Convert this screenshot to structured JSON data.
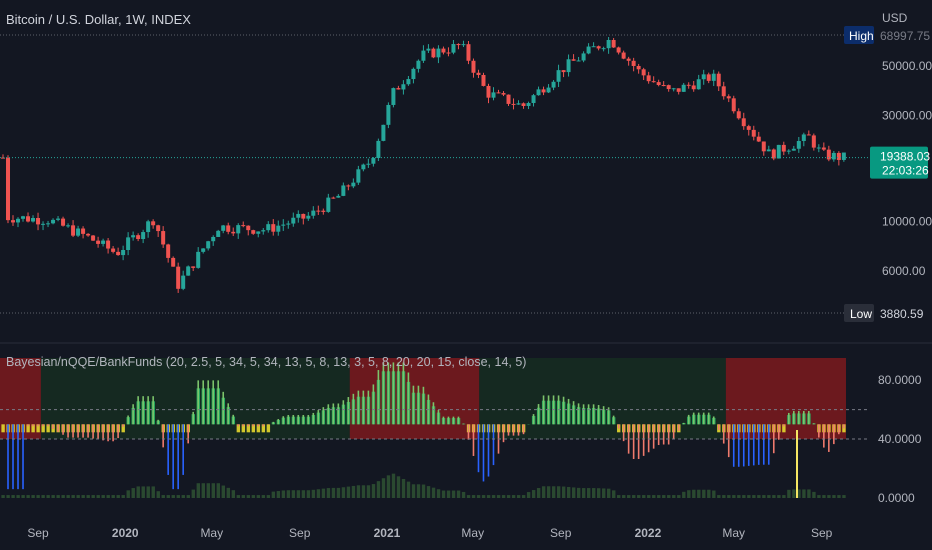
{
  "header": {
    "symbol_title": "Bitcoin / U.S. Dollar, 1W, INDEX"
  },
  "indicator": {
    "title": "Bayesian/nQQE/BankFunds (20, 2.5, 5, 34, 5, 34, 13, 5, 8, 13, 3, 5, 8, 20, 20, 15, close, 14, 5)"
  },
  "price_axis": {
    "currency": "USD",
    "ticks": [
      "50000.00",
      "30000.00",
      "10000.00",
      "6000.00"
    ],
    "high_label": "High",
    "high_value": "68997.75",
    "low_label": "Low",
    "low_value": "3880.59",
    "last_price": "19388.03",
    "countdown": "22:03:26"
  },
  "indicator_axis": {
    "ticks": [
      "80.0000",
      "40.0000",
      "0.0000"
    ]
  },
  "time_axis": {
    "ticks": [
      "Sep",
      "2020",
      "May",
      "Sep",
      "2021",
      "May",
      "Sep",
      "2022",
      "May",
      "Sep"
    ]
  },
  "colors": {
    "background": "#131722",
    "up": "#26a69a",
    "down": "#ef5350",
    "green_fill": "#2e7d32",
    "red_fill": "#b71c1c",
    "yellow": "#e6d82e",
    "bright_green": "#26c06a",
    "blue": "#2962ff",
    "last_price_bg": "#089981",
    "label_navy": "#0c2d6b"
  },
  "chart_data": {
    "type": "candlestick",
    "timeframe": "1W",
    "y_scale": "log",
    "ylim": [
      3880.59,
      68997.75
    ],
    "anchors": [
      {
        "date": "2019-07-15",
        "close": 10500
      },
      {
        "date": "2019-09-15",
        "close": 10200
      },
      {
        "date": "2019-11-10",
        "close": 8500
      },
      {
        "date": "2019-12-20",
        "close": 7200
      },
      {
        "date": "2020-02-10",
        "close": 10300
      },
      {
        "date": "2020-03-15",
        "close": 5200
      },
      {
        "date": "2020-05-10",
        "close": 9500
      },
      {
        "date": "2020-07-15",
        "close": 9200
      },
      {
        "date": "2020-09-15",
        "close": 10600
      },
      {
        "date": "2020-10-25",
        "close": 13000
      },
      {
        "date": "2020-12-10",
        "close": 19000
      },
      {
        "date": "2021-01-10",
        "close": 38000
      },
      {
        "date": "2021-02-20",
        "close": 56000
      },
      {
        "date": "2021-04-15",
        "close": 62000
      },
      {
        "date": "2021-05-20",
        "close": 38000
      },
      {
        "date": "2021-07-10",
        "close": 33000
      },
      {
        "date": "2021-09-01",
        "close": 48000
      },
      {
        "date": "2021-10-20",
        "close": 61000
      },
      {
        "date": "2021-11-10",
        "close": 66000
      },
      {
        "date": "2021-12-20",
        "close": 47000
      },
      {
        "date": "2022-02-01",
        "close": 38000
      },
      {
        "date": "2022-04-01",
        "close": 45000
      },
      {
        "date": "2022-05-10",
        "close": 30000
      },
      {
        "date": "2022-06-20",
        "close": 20000
      },
      {
        "date": "2022-08-15",
        "close": 24000
      },
      {
        "date": "2022-09-01",
        "close": 20000
      },
      {
        "date": "2022-10-01",
        "close": 19388
      }
    ],
    "indicator": {
      "levels": [
        60,
        40
      ],
      "ylim": [
        0,
        95
      ],
      "segments": [
        {
          "start": "2019-07-01",
          "end": "2019-09-05",
          "state": "bearish"
        },
        {
          "start": "2019-09-05",
          "end": "2020-11-10",
          "state": "bullish"
        },
        {
          "start": "2020-11-10",
          "end": "2021-05-10",
          "state": "bearish"
        },
        {
          "start": "2021-05-10",
          "end": "2022-04-20",
          "state": "bullish"
        },
        {
          "start": "2022-04-20",
          "end": "2022-10-05",
          "state": "bearish"
        }
      ]
    }
  }
}
